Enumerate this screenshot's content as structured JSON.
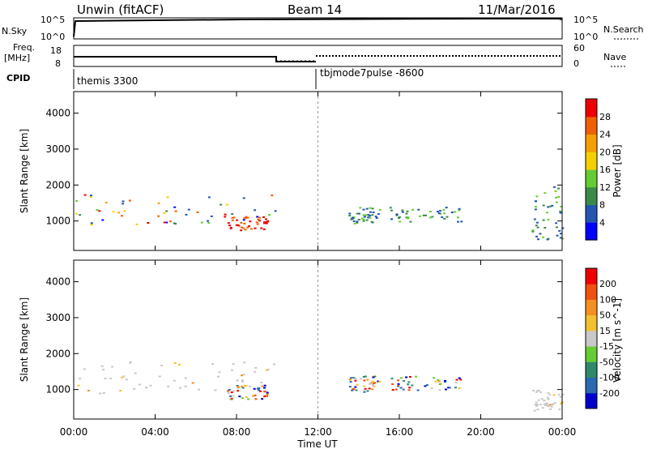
{
  "header": {
    "station": "Unwin (fitACF)",
    "beam": "Beam 14",
    "date": "11/Mar/2016"
  },
  "strip_panels": {
    "nsky_label": "N.Sky",
    "nsky_ticks": [
      "10^5",
      "10^0"
    ],
    "nsearch_label": "N.Search",
    "freq_label": "Freq.",
    "freq_unit": "[MHz]",
    "freq_ticks": [
      "18",
      "8"
    ],
    "nave_label": "Nave",
    "nave_ticks": [
      "60",
      "0"
    ],
    "cpid_label": "CPID",
    "cpid_left": "themis 3300",
    "cpid_right": "tbjmode7pulse -8600"
  },
  "chart_data": [
    {
      "type": "heatmap",
      "name": "power",
      "xlabel": "",
      "ylabel": "Slant Range [km]",
      "xlim": [
        0,
        24
      ],
      "ylim": [
        180,
        4600
      ],
      "y_ticks": [
        1000,
        2000,
        3000,
        4000
      ],
      "colorbar_label": "Power [dB]",
      "colorbar_ticks": [
        4,
        8,
        12,
        16,
        20,
        24,
        28
      ],
      "colorbar_colors": [
        "#0000ff",
        "#2456b0",
        "#3a8a4a",
        "#66cc33",
        "#f5d000",
        "#f5a000",
        "#f06000",
        "#ee0000"
      ],
      "regions": [
        {
          "t": [
            0,
            10
          ],
          "r": [
            900,
            1800
          ],
          "level": "mixed"
        },
        {
          "t": [
            7.5,
            9.5
          ],
          "r": [
            750,
            1150
          ],
          "level": "high"
        },
        {
          "t": [
            13.5,
            15
          ],
          "r": [
            950,
            1400
          ],
          "level": "low"
        },
        {
          "t": [
            15.5,
            19
          ],
          "r": [
            1000,
            1400
          ],
          "level": "low"
        },
        {
          "t": [
            22.5,
            24
          ],
          "r": [
            400,
            2000
          ],
          "level": "low"
        }
      ]
    },
    {
      "type": "heatmap",
      "name": "velocity",
      "xlabel": "Time UT",
      "ylabel": "Slant Range [km]",
      "xlim": [
        0,
        24
      ],
      "ylim": [
        180,
        4600
      ],
      "x_ticks": [
        "00:00",
        "04:00",
        "08:00",
        "12:00",
        "16:00",
        "20:00",
        "00:00"
      ],
      "y_ticks": [
        1000,
        2000,
        3000,
        4000
      ],
      "colorbar_label": "Velocity [m s^-1]",
      "colorbar_ticks": [
        200,
        100,
        50,
        15,
        -15,
        -50,
        -100,
        -200
      ],
      "colorbar_colors": [
        "#0000cc",
        "#2a6ab0",
        "#2e8a6a",
        "#66cc33",
        "#c8c8c8",
        "#f5c030",
        "#f59020",
        "#f05010",
        "#ee0000"
      ],
      "regions": [
        {
          "t": [
            0,
            10
          ],
          "r": [
            900,
            1800
          ],
          "level": "ground-scatter"
        },
        {
          "t": [
            7.5,
            9.5
          ],
          "r": [
            750,
            1150
          ],
          "level": "mixed"
        },
        {
          "t": [
            13.5,
            15
          ],
          "r": [
            950,
            1400
          ],
          "level": "mixed"
        },
        {
          "t": [
            15.5,
            19
          ],
          "r": [
            1000,
            1400
          ],
          "level": "mixed"
        },
        {
          "t": [
            22.5,
            24
          ],
          "r": [
            400,
            1000
          ],
          "level": "ground-scatter"
        }
      ]
    }
  ]
}
